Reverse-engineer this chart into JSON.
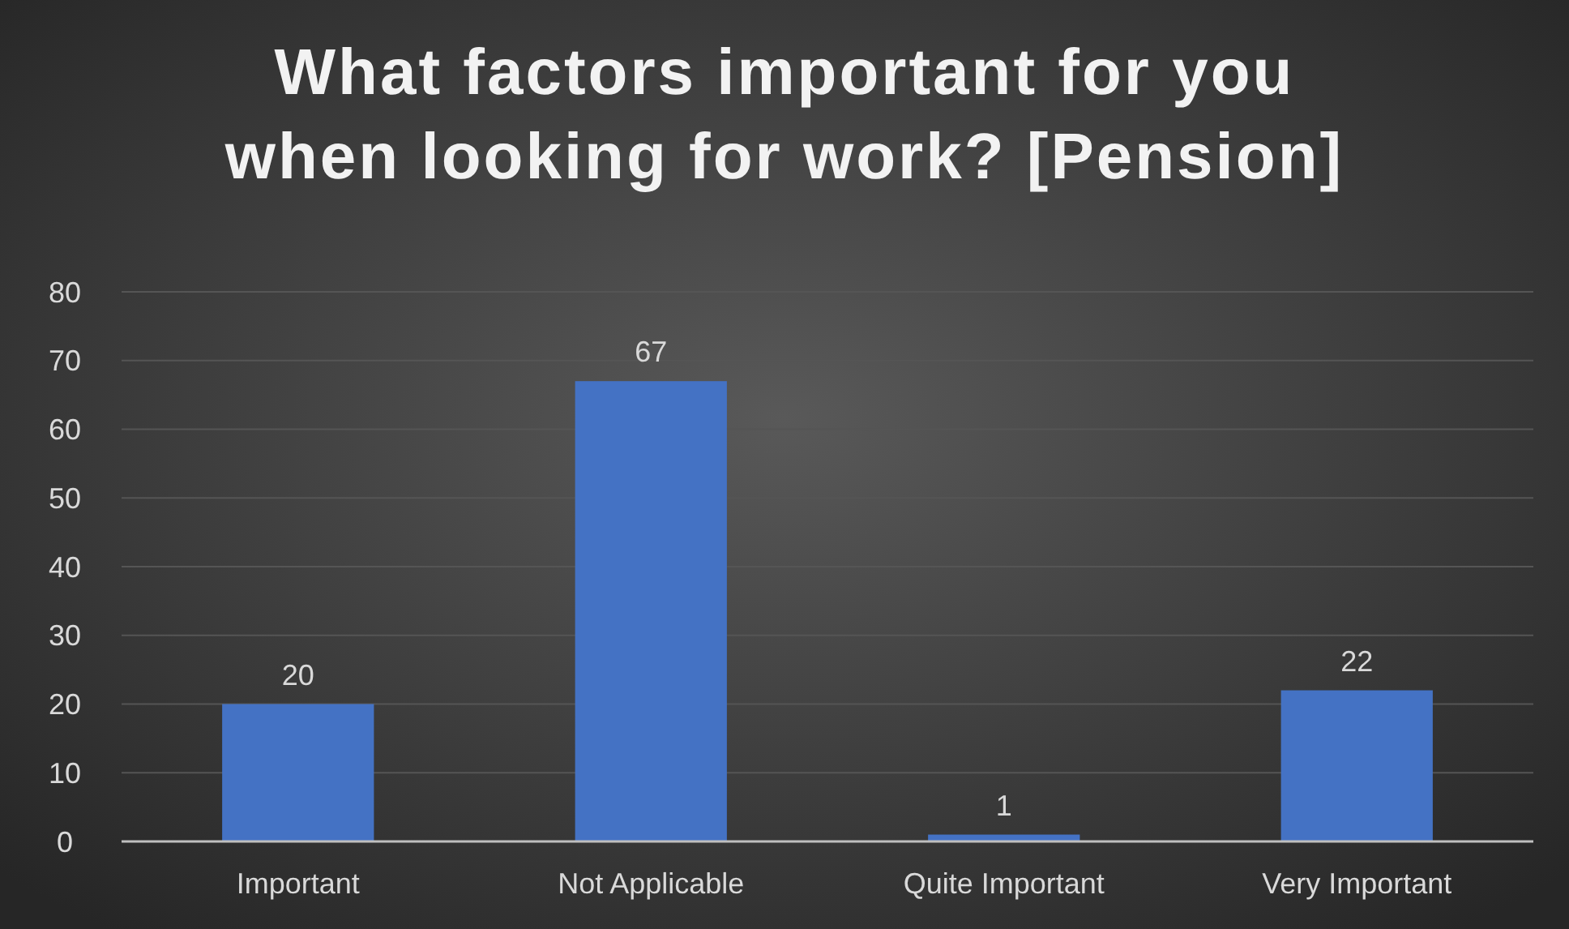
{
  "chart_data": {
    "type": "bar",
    "title": "What factors important for you when looking for work? [Pension]",
    "categories": [
      "Important",
      "Not Applicable",
      "Quite Important",
      "Very Important"
    ],
    "values": [
      20,
      67,
      1,
      22
    ],
    "color": "#4472c4",
    "ylim": [
      0,
      80
    ],
    "yticks": [
      0,
      10,
      20,
      30,
      40,
      50,
      60,
      70,
      80
    ],
    "grid": "y",
    "data_labels": true
  }
}
